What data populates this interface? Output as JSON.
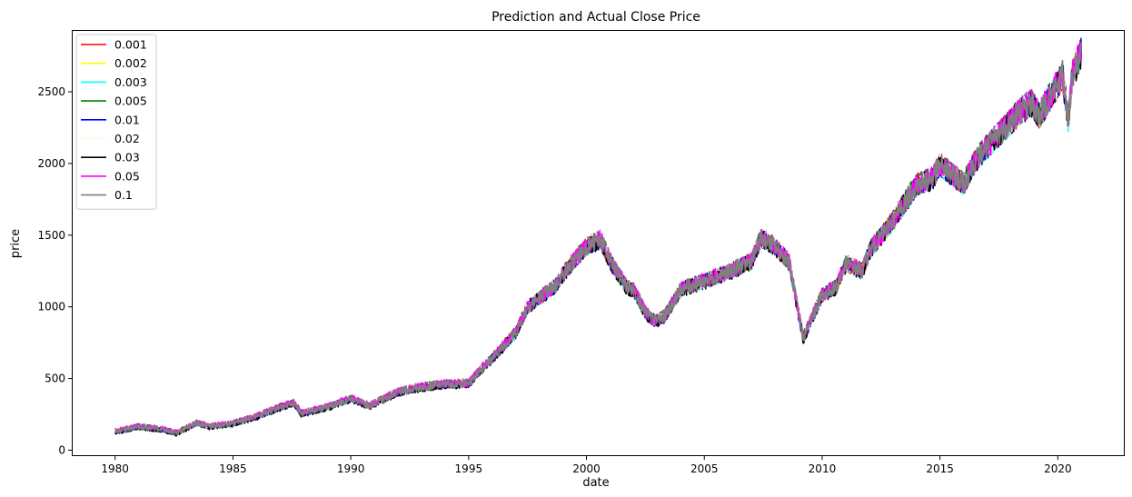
{
  "chart_data": {
    "type": "line",
    "title": "Prediction and Actual Close Price",
    "xlabel": "date",
    "ylabel": "price",
    "xlim": [
      1978.2,
      2022.8
    ],
    "ylim": [
      -35,
      2925
    ],
    "x_ticks": [
      1980,
      1985,
      1990,
      1995,
      2000,
      2005,
      2010,
      2015,
      2020
    ],
    "y_ticks": [
      0,
      500,
      1000,
      1500,
      2000,
      2500
    ],
    "grid": false,
    "legend_position": "top-left",
    "series": [
      {
        "name": "0.001",
        "color": "#ff0000"
      },
      {
        "name": "0.002",
        "color": "#ffff00"
      },
      {
        "name": "0.003",
        "color": "#00ffff"
      },
      {
        "name": "0.005",
        "color": "#008000"
      },
      {
        "name": "0.01",
        "color": "#0000ff"
      },
      {
        "name": "0.02",
        "color": "#fff8dc"
      },
      {
        "name": "0.03",
        "color": "#000000"
      },
      {
        "name": "0.05",
        "color": "#ff00ff"
      },
      {
        "name": "0.1",
        "color": "#808080"
      }
    ],
    "price_path": {
      "x": [
        1980.0,
        1981.0,
        1982.0,
        1982.6,
        1983.5,
        1984.0,
        1985.0,
        1986.0,
        1987.0,
        1987.6,
        1987.9,
        1989.0,
        1990.0,
        1990.8,
        1992.0,
        1993.0,
        1994.0,
        1995.0,
        1995.5,
        1996.0,
        1997.0,
        1997.5,
        1998.0,
        1998.7,
        1999.0,
        2000.0,
        2000.6,
        2001.0,
        2001.7,
        2002.0,
        2002.5,
        2002.9,
        2003.3,
        2004.0,
        2005.0,
        2006.0,
        2007.0,
        2007.4,
        2008.0,
        2008.6,
        2009.2,
        2009.5,
        2010.0,
        2010.6,
        2011.0,
        2011.7,
        2012.0,
        2013.0,
        2014.0,
        2014.7,
        2015.0,
        2015.7,
        2016.0,
        2016.5,
        2017.0,
        2018.0,
        2018.5,
        2018.9,
        2019.2,
        2019.5,
        2020.0,
        2020.2,
        2020.45,
        2020.6,
        2021.0
      ],
      "y": [
        130,
        165,
        145,
        120,
        190,
        165,
        185,
        235,
        300,
        330,
        255,
        300,
        360,
        310,
        405,
        440,
        460,
        465,
        560,
        640,
        820,
        1000,
        1060,
        1150,
        1230,
        1420,
        1470,
        1320,
        1140,
        1120,
        960,
        900,
        930,
        1120,
        1180,
        1240,
        1320,
        1480,
        1420,
        1310,
        780,
        900,
        1080,
        1140,
        1300,
        1250,
        1390,
        1600,
        1850,
        1900,
        1990,
        1900,
        1860,
        2020,
        2120,
        2290,
        2380,
        2420,
        2330,
        2420,
        2550,
        2620,
        2300,
        2600,
        2790
      ]
    }
  }
}
